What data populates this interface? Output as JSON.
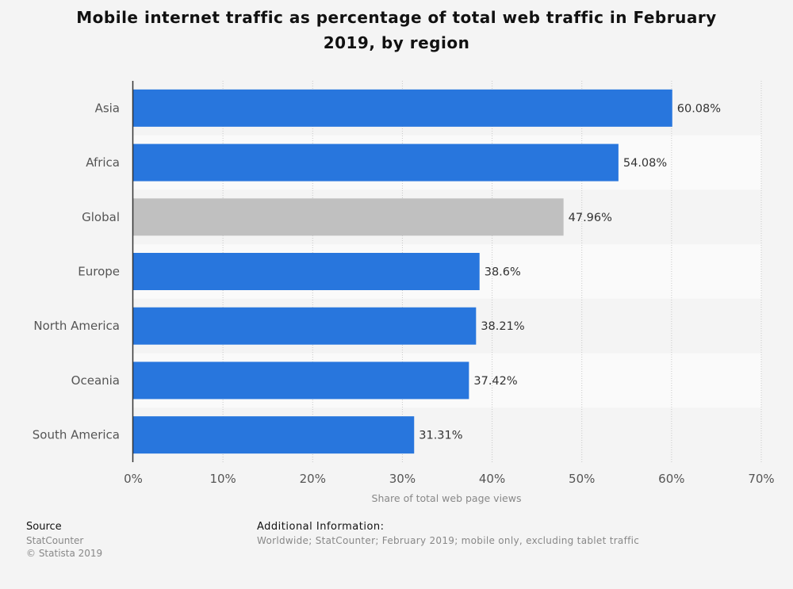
{
  "title": "Mobile internet traffic as percentage of total web traffic in February 2019, by region",
  "chart_data": {
    "type": "bar",
    "orientation": "horizontal",
    "categories": [
      "Asia",
      "Africa",
      "Global",
      "Europe",
      "North America",
      "Oceania",
      "South America"
    ],
    "values": [
      60.08,
      54.08,
      47.96,
      38.6,
      38.21,
      37.42,
      31.31
    ],
    "value_labels": [
      "60.08%",
      "54.08%",
      "47.96%",
      "38.6%",
      "38.21%",
      "37.42%",
      "31.31%"
    ],
    "xlabel": "Share of total web page views",
    "ylabel": "",
    "xlim": [
      0,
      70
    ],
    "xticks": [
      0,
      10,
      20,
      30,
      40,
      50,
      60,
      70
    ],
    "xtick_labels": [
      "0%",
      "10%",
      "20%",
      "30%",
      "40%",
      "50%",
      "60%",
      "70%"
    ],
    "grid": "vertical dotted",
    "colors": {
      "bar": "#2876dd",
      "highlight_bar": "#c0c0c0",
      "highlight_category": "Global"
    }
  },
  "footer": {
    "source_heading": "Source",
    "source_lines": [
      "StatCounter",
      "© Statista 2019"
    ],
    "info_heading": "Additional Information:",
    "info_text": "Worldwide; StatCounter; February 2019; mobile only, excluding tablet traffic"
  }
}
